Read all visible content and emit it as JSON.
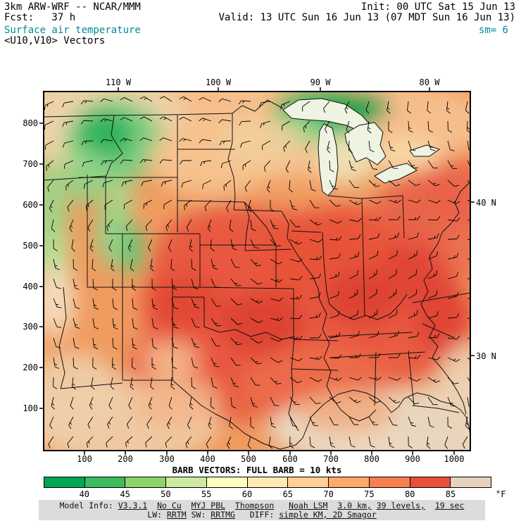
{
  "header": {
    "model": "3km ARW-WRF -- NCAR/MMM",
    "fcst": "Fcst:   37 h",
    "field": "Surface air temperature",
    "vectors": "<U10,V10> Vectors",
    "init": "Init: 00 UTC Sat 15 Jun 13",
    "valid": "Valid: 13 UTC Sun 16 Jun 13 (07 MDT Sun 16 Jun 13)",
    "smoothing": "sm= 6"
  },
  "colors": {
    "accent_teal": "#008b9b",
    "frame": "#000000",
    "footer_bg": "#dcdcdc"
  },
  "axes": {
    "top": [
      "110 W",
      "100 W",
      "90 W",
      "80 W"
    ],
    "right": [
      "40 N",
      "30 N"
    ],
    "left": [
      "800",
      "700",
      "600",
      "500",
      "400",
      "300",
      "200",
      "100"
    ],
    "bottom": [
      "100",
      "200",
      "300",
      "400",
      "500",
      "600",
      "700",
      "800",
      "900",
      "1000"
    ]
  },
  "barb_caption": "BARB VECTORS: FULL BARB = 10 kts",
  "colorbar": {
    "values": [
      "40",
      "45",
      "50",
      "55",
      "60",
      "65",
      "70",
      "75",
      "80",
      "85"
    ],
    "colors": [
      "#00a651",
      "#3cbb5e",
      "#8fd46a",
      "#cdeaa0",
      "#ffffc2",
      "#ffeab4",
      "#ffcf94",
      "#ffaa6b",
      "#f97f4e",
      "#e8503a",
      "#e6d2bd"
    ],
    "unit": "°F"
  },
  "footer": {
    "line1": [
      {
        "t": "Model Info: ",
        "u": false
      },
      {
        "t": "V3.3.1",
        "u": true
      },
      {
        "t": "  ",
        "u": false
      },
      {
        "t": "No Cu",
        "u": true
      },
      {
        "t": "  ",
        "u": false
      },
      {
        "t": "MYJ PBL",
        "u": true
      },
      {
        "t": "  ",
        "u": false
      },
      {
        "t": "Thompson",
        "u": true
      },
      {
        "t": "   ",
        "u": false
      },
      {
        "t": "Noah LSM",
        "u": true
      },
      {
        "t": "  ",
        "u": false
      },
      {
        "t": "3.0 km,",
        "u": true
      },
      {
        "t": " ",
        "u": false
      },
      {
        "t": "39 levels,",
        "u": true
      },
      {
        "t": "  ",
        "u": false
      },
      {
        "t": "19 sec",
        "u": true
      }
    ],
    "line2": [
      {
        "t": "LW: ",
        "u": false
      },
      {
        "t": "RRTM",
        "u": true
      },
      {
        "t": " SW: ",
        "u": false
      },
      {
        "t": "RRTMG",
        "u": true
      },
      {
        "t": "   DIFF: ",
        "u": false
      },
      {
        "t": "simple KM, 2D Smagor",
        "u": true
      }
    ]
  },
  "chart_data": {
    "type": "heatmap",
    "title": "Surface air temperature",
    "legend_values_F": [
      40,
      45,
      50,
      55,
      60,
      65,
      70,
      75,
      80,
      85
    ],
    "x_axis_range": [
      0,
      1050
    ],
    "y_axis_range": [
      0,
      850
    ],
    "longitude_labels": [
      "110 W",
      "100 W",
      "90 W",
      "80 W"
    ],
    "latitude_labels": [
      "40 N",
      "30 N"
    ],
    "vector_legend": "FULL BARB = 10 kts"
  }
}
